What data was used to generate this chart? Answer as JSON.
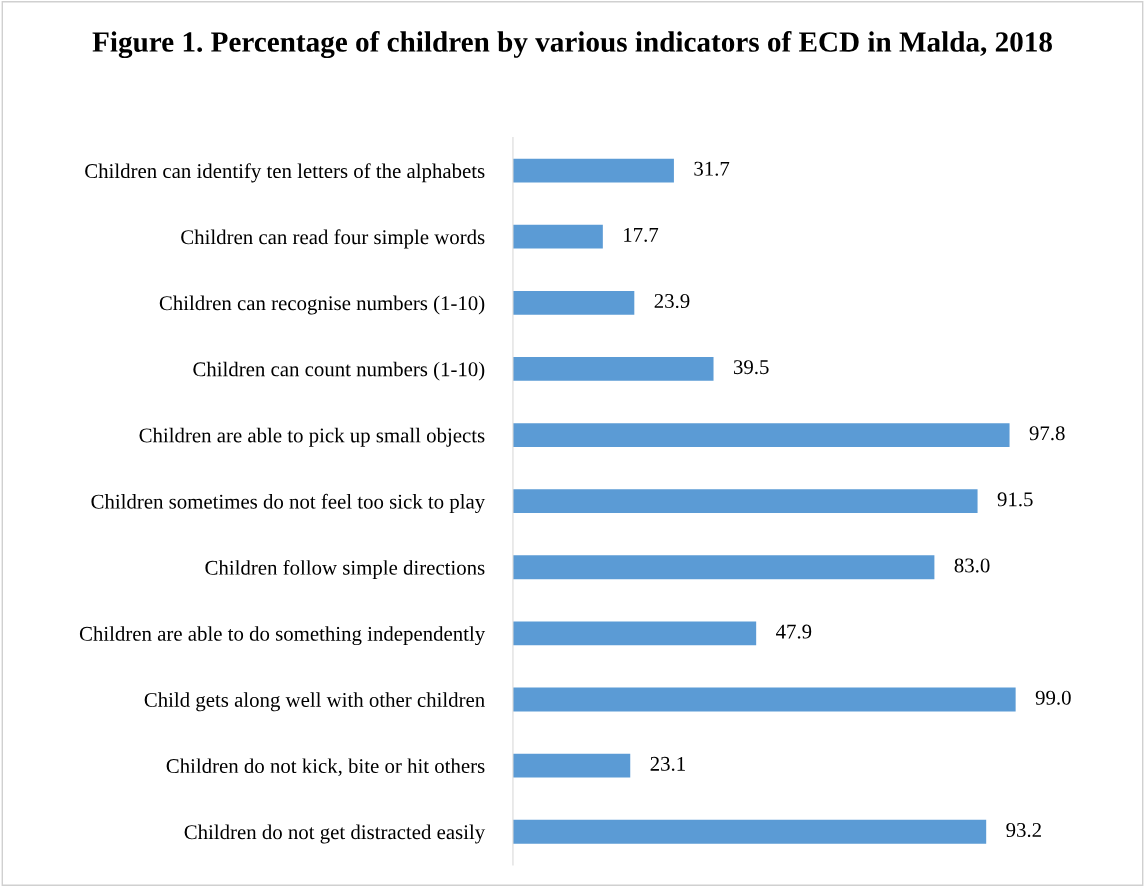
{
  "chart_data": {
    "type": "bar",
    "orientation": "horizontal",
    "title": "Figure 1. Percentage of children by various indicators of ECD in Malda, 2018",
    "categories": [
      "Children can identify ten letters of the alphabets",
      "Children can read four simple words",
      "Children can recognise numbers (1-10)",
      "Children can count numbers (1-10)",
      "Children are able to pick up small objects",
      "Children sometimes do not feel too sick to play",
      "Children follow simple directions",
      "Children are able to do something independently",
      "Child gets along well with other children",
      "Children do not kick, bite or hit others",
      "Children do not get distracted easily"
    ],
    "values": [
      31.7,
      17.7,
      23.9,
      39.5,
      97.8,
      91.5,
      83.0,
      47.9,
      99.0,
      23.1,
      93.2
    ],
    "value_labels": [
      "31.7",
      "17.7",
      "23.9",
      "39.5",
      "97.8",
      "91.5",
      "83.0",
      "47.9",
      "99.0",
      "23.1",
      "93.2"
    ],
    "color": "#5b9bd5",
    "tick_labels": "y",
    "grid": false,
    "legend": false
  }
}
